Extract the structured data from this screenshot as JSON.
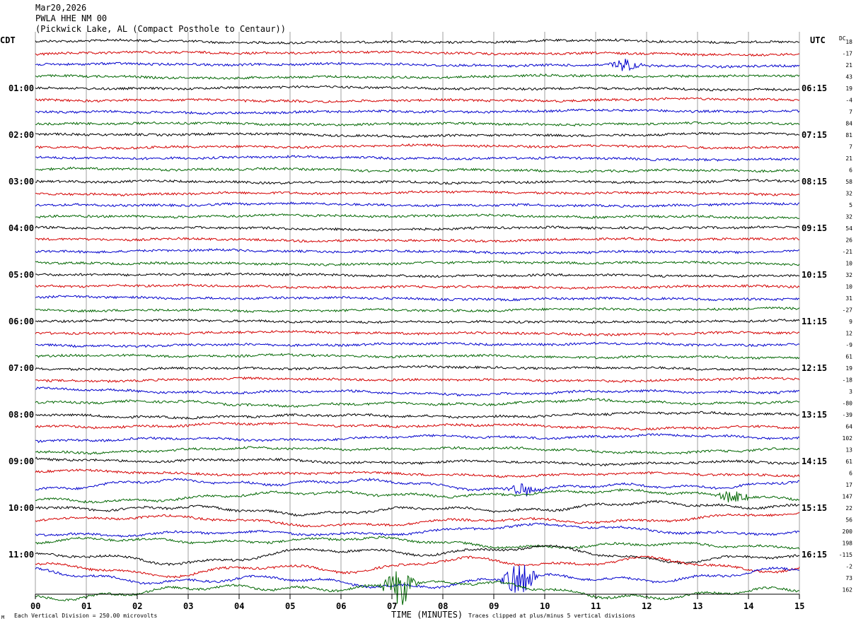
{
  "header": {
    "line1": "Mar20,2026",
    "line2": "PWLA HHE NM 00",
    "line3": "(Pickwick Lake, AL (Compact Posthole to Centaur))"
  },
  "labels": {
    "left_tz": "CDT",
    "right_tz": "UTC",
    "dc": "DC",
    "xlabel": "TIME (MINUTES)",
    "footer_scale": "Each Vertical Division =  250.00 microvolts",
    "footer_clip": "Traces clipped at plus/minus 5 vertical divisions",
    "corner": "M"
  },
  "chart_data": {
    "type": "line",
    "title": "PWLA HHE NM 00",
    "xlabel": "TIME (MINUTES)",
    "xlim": [
      0,
      15
    ],
    "x_ticks": [
      "00",
      "01",
      "02",
      "03",
      "04",
      "05",
      "06",
      "07",
      "08",
      "09",
      "10",
      "11",
      "12",
      "13",
      "14",
      "15"
    ],
    "trace_interval_minutes": 15,
    "trace_count": 48,
    "trace_colors": [
      "#000000",
      "#d40000",
      "#0000cc",
      "#006600"
    ],
    "left_hour_labels": [
      "01:00",
      "02:00",
      "03:00",
      "04:00",
      "05:00",
      "06:00",
      "07:00",
      "08:00",
      "09:00",
      "10:00",
      "11:00"
    ],
    "right_hour_labels": [
      "06:15",
      "07:15",
      "08:15",
      "09:15",
      "10:15",
      "11:15",
      "12:15",
      "13:15",
      "14:15",
      "15:15",
      "16:15"
    ],
    "dc_offsets": [
      "18",
      "-17",
      "21",
      "43",
      "19",
      "-4",
      "7",
      "84",
      "81",
      "7",
      "21",
      "6",
      "58",
      "32",
      "5",
      "32",
      "54",
      "26",
      "-21",
      "10",
      "32",
      "10",
      "31",
      "-27",
      "9",
      "12",
      "-9",
      "61",
      "19",
      "-18",
      "3",
      "-80",
      "-39",
      "64",
      "102",
      "13",
      "61",
      "6",
      "17",
      "147",
      "22",
      "56",
      "200",
      "198",
      "-115",
      "-2",
      "73",
      "162"
    ],
    "events": [
      {
        "trace": 2,
        "minute": 11.6,
        "note": "small blue burst"
      },
      {
        "trace": 38,
        "minute": 9.6,
        "note": "blue burst"
      },
      {
        "trace": 39,
        "minute": 13.7,
        "note": "green burst"
      },
      {
        "trace": 47,
        "minute": 7.15,
        "note": "large green burst"
      },
      {
        "trace": 46,
        "minute": 9.5,
        "note": "large blue burst"
      }
    ]
  }
}
